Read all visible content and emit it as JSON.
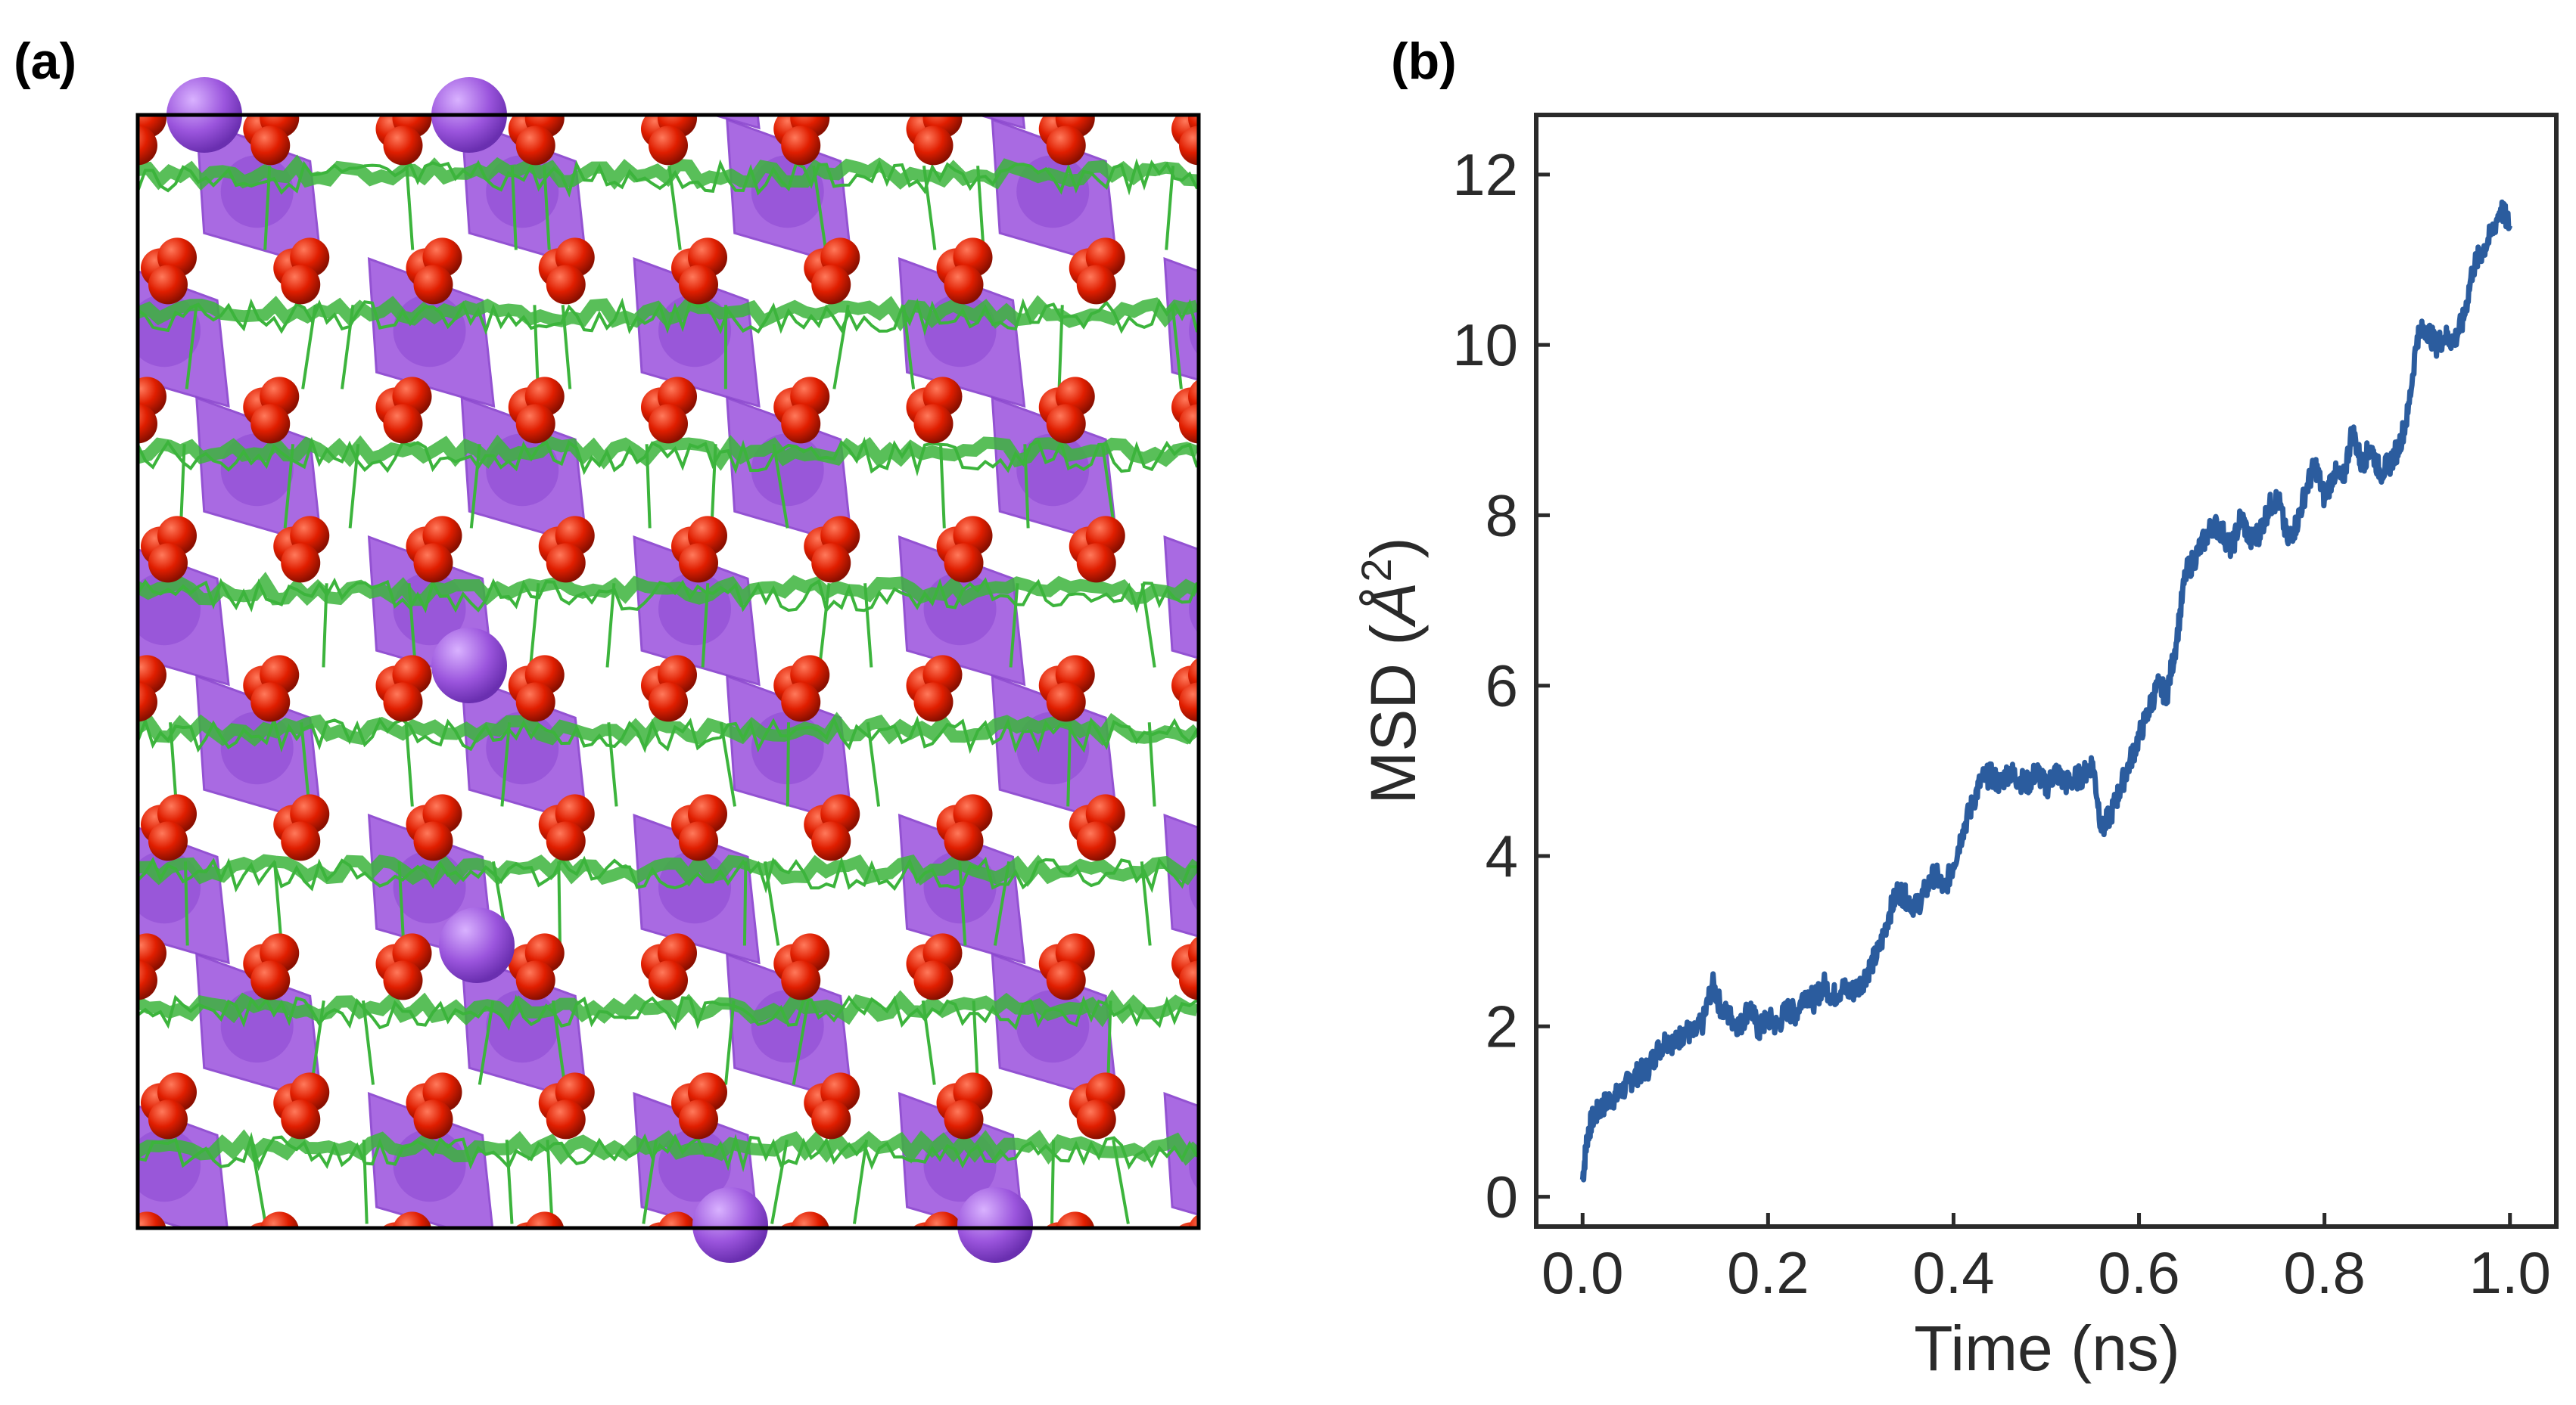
{
  "panels": {
    "a_label": "(a)",
    "b_label": "(b)"
  },
  "structure": {
    "colors": {
      "polyhedra": "#a25ee0",
      "polyhedra_dark": "#8a44cf",
      "large_atom": "#9b55dd",
      "oxygen": "#e01e00",
      "trajectory": "#3cb43c",
      "cell_border": "#000000"
    },
    "layers": 8
  },
  "chart_data": {
    "type": "line",
    "xlabel": "Time (ns)",
    "ylabel_main": "MSD (",
    "ylabel_unit": "Å",
    "ylabel_sup": "2",
    "ylabel_close": ")",
    "xlim": [
      -0.05,
      1.05
    ],
    "ylim": [
      -0.35,
      12.7
    ],
    "xticks": [
      0.0,
      0.2,
      0.4,
      0.6,
      0.8,
      1.0
    ],
    "xtick_labels": [
      "0.0",
      "0.2",
      "0.4",
      "0.6",
      "0.8",
      "1.0"
    ],
    "yticks": [
      0,
      2,
      4,
      6,
      8,
      10,
      12
    ],
    "ytick_labels": [
      "0",
      "2",
      "4",
      "6",
      "8",
      "10",
      "12"
    ],
    "grid": false,
    "series": [
      {
        "color": "#2b5c9e",
        "x": [
          0.0,
          0.005,
          0.01,
          0.02,
          0.03,
          0.04,
          0.05,
          0.06,
          0.07,
          0.08,
          0.09,
          0.1,
          0.11,
          0.12,
          0.13,
          0.14,
          0.15,
          0.16,
          0.17,
          0.18,
          0.19,
          0.2,
          0.21,
          0.22,
          0.23,
          0.24,
          0.25,
          0.26,
          0.27,
          0.28,
          0.29,
          0.3,
          0.31,
          0.32,
          0.33,
          0.34,
          0.35,
          0.36,
          0.37,
          0.38,
          0.39,
          0.4,
          0.41,
          0.42,
          0.43,
          0.44,
          0.45,
          0.46,
          0.47,
          0.48,
          0.49,
          0.5,
          0.51,
          0.52,
          0.53,
          0.54,
          0.55,
          0.56,
          0.57,
          0.58,
          0.59,
          0.6,
          0.61,
          0.62,
          0.63,
          0.64,
          0.65,
          0.66,
          0.67,
          0.68,
          0.69,
          0.7,
          0.71,
          0.72,
          0.73,
          0.74,
          0.75,
          0.76,
          0.77,
          0.78,
          0.79,
          0.8,
          0.81,
          0.82,
          0.83,
          0.84,
          0.85,
          0.86,
          0.87,
          0.88,
          0.89,
          0.9,
          0.91,
          0.92,
          0.93,
          0.94,
          0.95,
          0.96,
          0.97,
          0.98,
          0.99,
          1.0
        ],
        "values": [
          0.2,
          0.7,
          0.9,
          1.05,
          1.15,
          1.2,
          1.35,
          1.45,
          1.5,
          1.7,
          1.85,
          1.8,
          1.95,
          1.9,
          2.05,
          2.5,
          2.2,
          2.1,
          2.0,
          2.25,
          1.95,
          2.1,
          2.0,
          2.2,
          2.15,
          2.4,
          2.3,
          2.5,
          2.35,
          2.45,
          2.4,
          2.5,
          2.7,
          2.9,
          3.3,
          3.6,
          3.5,
          3.4,
          3.6,
          3.8,
          3.6,
          3.9,
          4.3,
          4.6,
          4.9,
          4.95,
          4.85,
          5.0,
          4.9,
          4.85,
          5.0,
          4.8,
          5.0,
          4.85,
          4.9,
          4.95,
          5.1,
          4.3,
          4.5,
          4.8,
          5.1,
          5.4,
          5.7,
          6.0,
          5.9,
          6.5,
          7.3,
          7.5,
          7.7,
          7.9,
          7.8,
          7.6,
          8.0,
          7.7,
          7.8,
          8.1,
          8.2,
          7.7,
          7.9,
          8.3,
          8.6,
          8.2,
          8.5,
          8.4,
          9.0,
          8.6,
          8.8,
          8.5,
          8.6,
          8.8,
          9.2,
          10.1,
          10.2,
          10.0,
          10.1,
          10.05,
          10.3,
          10.9,
          11.1,
          11.3,
          11.6,
          11.4
        ]
      }
    ]
  }
}
